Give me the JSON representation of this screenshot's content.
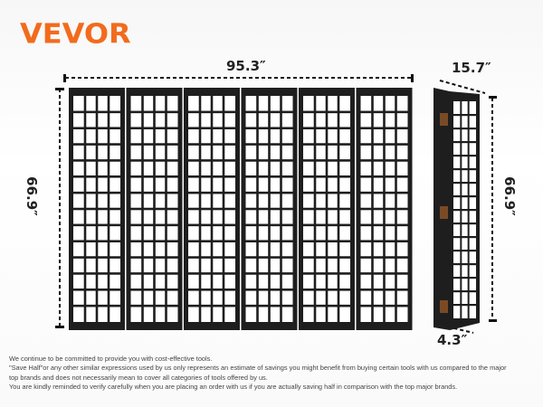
{
  "brand": {
    "logo_text": "VEVOR",
    "color": "#f26b1d"
  },
  "dimensions": {
    "width": "95.3″",
    "depth": "15.7″",
    "height_left": "66.9″",
    "height_right": "66.9″",
    "thickness": "4.3″"
  },
  "product": {
    "panel_count": 6,
    "frame_color": "#1e1e1e",
    "paper_color": "#ffffff",
    "grid_cols": 4,
    "grid_rows": 14
  },
  "disclaimer": [
    "We continue to be committed to provide you with cost-effective tools.",
    "\"Save Half\"or any other similar expressions used by us only represents an estimate of savings you might benefit from buying certain tools with us compared to the major",
    "top brands and does not necessarily mean to cover all categories of tools offered by us.",
    "You are kindly reminded to verify carefully when you are placing an order with us if you are actually saving half in comparison with the top major brands."
  ]
}
